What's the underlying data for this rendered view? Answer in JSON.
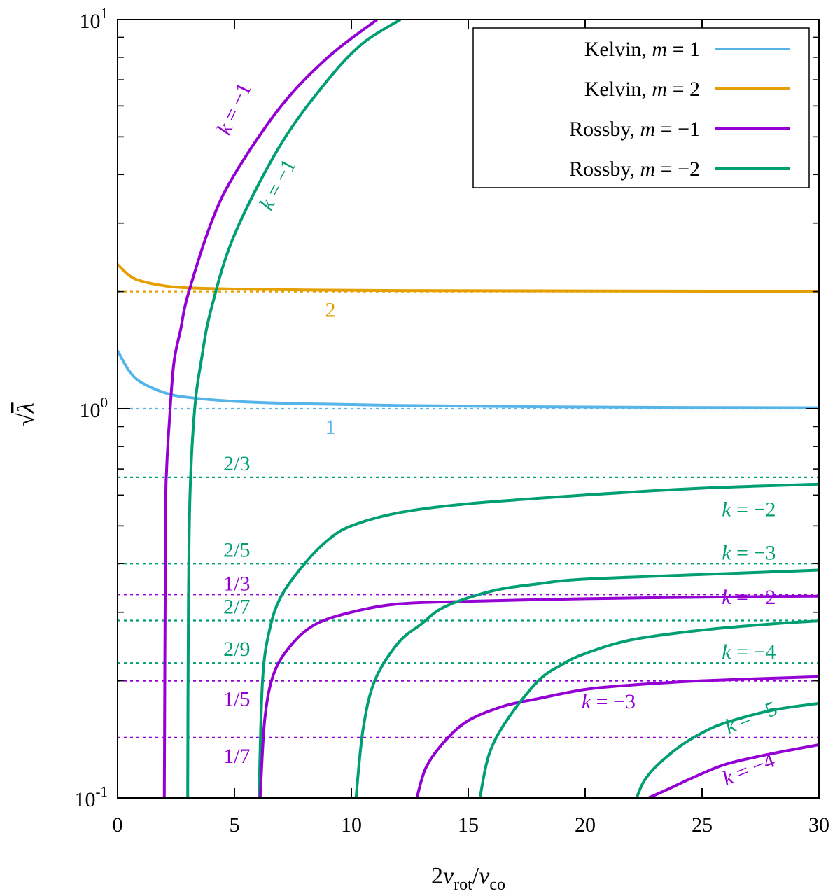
{
  "chart_data": {
    "type": "line",
    "xlabel": "2ν_rot/ν_co",
    "ylabel": "√λ",
    "xlim": [
      0,
      30
    ],
    "ylim": [
      0.1,
      10
    ],
    "y_scale": "log",
    "grid": false,
    "legend_placement": "top-right",
    "x_ticks": [
      {
        "value": 0,
        "label": "0"
      },
      {
        "value": 5,
        "label": "5"
      },
      {
        "value": 10,
        "label": "10"
      },
      {
        "value": 15,
        "label": "15"
      },
      {
        "value": 20,
        "label": "20"
      },
      {
        "value": 25,
        "label": "25"
      },
      {
        "value": 30,
        "label": "30"
      }
    ],
    "y_ticks": [
      {
        "value": 0.1,
        "base": "10",
        "exp": "-1"
      },
      {
        "value": 1,
        "base": "10",
        "exp": "0"
      },
      {
        "value": 10,
        "base": "10",
        "exp": "1"
      }
    ],
    "colors": {
      "kelvin1": "#56b4e9",
      "kelvin2": "#e69f00",
      "rossby1": "#9400d3",
      "rossby2": "#009e73"
    },
    "legend": [
      {
        "prefix": "Kelvin, ",
        "var": "m",
        "value": " = 1",
        "color": "#56b4e9"
      },
      {
        "prefix": "Kelvin, ",
        "var": "m",
        "value": " = 2",
        "color": "#e69f00"
      },
      {
        "prefix": "Rossby, ",
        "var": "m",
        "value": " = −1",
        "color": "#9400d3"
      },
      {
        "prefix": "Rossby, ",
        "var": "m",
        "value": " = −2",
        "color": "#009e73"
      }
    ],
    "asymptotes": [
      {
        "value": 2,
        "label": "2",
        "color": "#e69f00"
      },
      {
        "value": 1,
        "label": "1",
        "color": "#56b4e9"
      },
      {
        "value": 0.6667,
        "label": "2/3",
        "color": "#009e73"
      },
      {
        "value": 0.4,
        "label": "2/5",
        "color": "#009e73"
      },
      {
        "value": 0.3333,
        "label": "1/3",
        "color": "#9400d3"
      },
      {
        "value": 0.2857,
        "label": "2/7",
        "color": "#009e73"
      },
      {
        "value": 0.2222,
        "label": "2/9",
        "color": "#009e73"
      },
      {
        "value": 0.2,
        "label": "1/5",
        "color": "#9400d3"
      },
      {
        "value": 0.1429,
        "label": "1/7",
        "color": "#9400d3"
      }
    ],
    "series": [
      {
        "name": "Kelvin, m = 1",
        "color": "#56b4e9",
        "points": [
          [
            0,
            1.41
          ],
          [
            0.5,
            1.25
          ],
          [
            1,
            1.17
          ],
          [
            2,
            1.1
          ],
          [
            3,
            1.07
          ],
          [
            5,
            1.045
          ],
          [
            8,
            1.03
          ],
          [
            12,
            1.02
          ],
          [
            18,
            1.012
          ],
          [
            24,
            1.008
          ],
          [
            30,
            1.006
          ]
        ]
      },
      {
        "name": "Kelvin, m = 2",
        "color": "#e69f00",
        "points": [
          [
            0,
            2.35
          ],
          [
            0.5,
            2.2
          ],
          [
            1,
            2.13
          ],
          [
            2,
            2.07
          ],
          [
            3,
            2.045
          ],
          [
            5,
            2.03
          ],
          [
            8,
            2.02
          ],
          [
            12,
            2.013
          ],
          [
            18,
            2.009
          ],
          [
            24,
            2.006
          ],
          [
            30,
            2.005
          ]
        ]
      },
      {
        "name": "Rossby, m = −1, k = −1",
        "color": "#9400d3",
        "points": [
          [
            2,
            0.1
          ],
          [
            2.05,
            0.5
          ],
          [
            2.1,
            0.7
          ],
          [
            2.2,
            0.9
          ],
          [
            2.4,
            1.3
          ],
          [
            2.7,
            1.6
          ],
          [
            3,
            1.95
          ],
          [
            4,
            3.0
          ],
          [
            5,
            4.0
          ],
          [
            7,
            6.0
          ],
          [
            9,
            8.0
          ],
          [
            11.1,
            10
          ]
        ]
      },
      {
        "name": "Rossby, m = −2, k = −1",
        "color": "#009e73",
        "points": [
          [
            3,
            0.1
          ],
          [
            3.03,
            0.3
          ],
          [
            3.1,
            0.6
          ],
          [
            3.3,
            1.0
          ],
          [
            3.6,
            1.35
          ],
          [
            4,
            1.8
          ],
          [
            5,
            2.8
          ],
          [
            7,
            4.8
          ],
          [
            9,
            7.0
          ],
          [
            10.5,
            8.7
          ],
          [
            12.1,
            10
          ]
        ]
      },
      {
        "name": "Rossby, m = −2, k = −2",
        "color": "#009e73",
        "points": [
          [
            6.05,
            0.1
          ],
          [
            6.2,
            0.2
          ],
          [
            6.5,
            0.27
          ],
          [
            7,
            0.33
          ],
          [
            8,
            0.4
          ],
          [
            9,
            0.46
          ],
          [
            10,
            0.5
          ],
          [
            12,
            0.54
          ],
          [
            15,
            0.57
          ],
          [
            20,
            0.6
          ],
          [
            25,
            0.625
          ],
          [
            30,
            0.64
          ]
        ]
      },
      {
        "name": "Rossby, m = −1, k = −2",
        "color": "#9400d3",
        "points": [
          [
            6.1,
            0.1
          ],
          [
            6.3,
            0.16
          ],
          [
            6.7,
            0.21
          ],
          [
            7.5,
            0.25
          ],
          [
            8.5,
            0.28
          ],
          [
            10,
            0.3
          ],
          [
            12,
            0.315
          ],
          [
            15,
            0.32
          ],
          [
            20,
            0.325
          ],
          [
            25,
            0.328
          ],
          [
            30,
            0.33
          ]
        ]
      },
      {
        "name": "Rossby, m = −2, k = −3",
        "color": "#009e73",
        "points": [
          [
            10.2,
            0.1
          ],
          [
            10.5,
            0.15
          ],
          [
            11,
            0.2
          ],
          [
            12,
            0.25
          ],
          [
            13,
            0.28
          ],
          [
            14,
            0.31
          ],
          [
            16,
            0.34
          ],
          [
            18,
            0.355
          ],
          [
            20,
            0.365
          ],
          [
            25,
            0.375
          ],
          [
            30,
            0.385
          ]
        ]
      },
      {
        "name": "Rossby, m = −1, k = −3",
        "color": "#9400d3",
        "points": [
          [
            12.8,
            0.1
          ],
          [
            13.2,
            0.12
          ],
          [
            14,
            0.14
          ],
          [
            15,
            0.158
          ],
          [
            16.5,
            0.172
          ],
          [
            18,
            0.18
          ],
          [
            20,
            0.19
          ],
          [
            22,
            0.195
          ],
          [
            25,
            0.2
          ],
          [
            30,
            0.205
          ]
        ]
      },
      {
        "name": "Rossby, m = −2, k = −4",
        "color": "#009e73",
        "points": [
          [
            15.5,
            0.1
          ],
          [
            15.9,
            0.13
          ],
          [
            16.7,
            0.16
          ],
          [
            18,
            0.2
          ],
          [
            19,
            0.22
          ],
          [
            20,
            0.235
          ],
          [
            22,
            0.255
          ],
          [
            25,
            0.27
          ],
          [
            28,
            0.28
          ],
          [
            30,
            0.285
          ]
        ]
      },
      {
        "name": "Rossby, m = −2, k = −5",
        "color": "#009e73",
        "points": [
          [
            22.2,
            0.1
          ],
          [
            22.5,
            0.11
          ],
          [
            23,
            0.12
          ],
          [
            24,
            0.135
          ],
          [
            25,
            0.147
          ],
          [
            26,
            0.156
          ],
          [
            28,
            0.168
          ],
          [
            30,
            0.175
          ]
        ]
      },
      {
        "name": "Rossby, m = −1, k = −4",
        "color": "#9400d3",
        "points": [
          [
            22.7,
            0.1
          ],
          [
            23.5,
            0.105
          ],
          [
            24.5,
            0.112
          ],
          [
            26,
            0.122
          ],
          [
            28,
            0.13
          ],
          [
            30,
            0.137
          ]
        ]
      }
    ],
    "annotations": [
      {
        "var": "k",
        "text": " = −1",
        "color": "#9400d3",
        "x": 5.25,
        "y": 5.8,
        "angle": -65
      },
      {
        "var": "k",
        "text": " = −1",
        "color": "#009e73",
        "x": 7.1,
        "y": 3.7,
        "angle": -62
      },
      {
        "var": "k",
        "text": " = −2",
        "color": "#009e73",
        "x": 27,
        "y": 0.53,
        "angle": 0
      },
      {
        "var": "k",
        "text": " = −3",
        "color": "#009e73",
        "x": 27,
        "y": 0.41,
        "angle": 0
      },
      {
        "var": "k",
        "text": " = −2",
        "color": "#9400d3",
        "x": 27,
        "y": 0.315,
        "angle": 0
      },
      {
        "var": "k",
        "text": " = −4",
        "color": "#009e73",
        "x": 27,
        "y": 0.228,
        "angle": 0
      },
      {
        "var": "k",
        "text": " = −3",
        "color": "#9400d3",
        "x": 21,
        "y": 0.17,
        "angle": 0
      },
      {
        "var": "k",
        "text": " = −5",
        "color": "#009e73",
        "x": 27.2,
        "y": 0.155,
        "angle": -22
      },
      {
        "var": "k",
        "text": " = −4",
        "color": "#9400d3",
        "x": 27.1,
        "y": 0.114,
        "angle": -22
      }
    ]
  }
}
